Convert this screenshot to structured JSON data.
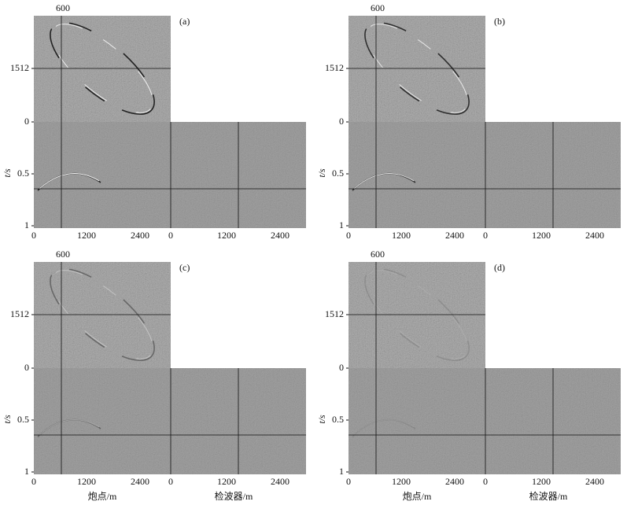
{
  "panels": [
    {
      "label": "(a)",
      "top_tick": "600",
      "left_ticks": [
        "1512",
        "0",
        "0.5",
        "1"
      ],
      "bottom_ticks": [
        "0",
        "1200",
        "2400",
        "0",
        "1200",
        "2400"
      ]
    },
    {
      "label": "(b)",
      "top_tick": "600",
      "left_ticks": [
        "1512",
        "0",
        "0.5",
        "1"
      ],
      "bottom_ticks": [
        "0",
        "1200",
        "2400",
        "0",
        "1200",
        "2400"
      ]
    },
    {
      "label": "(c)",
      "top_tick": "600",
      "left_ticks": [
        "1512",
        "0",
        "0.5",
        "1"
      ],
      "bottom_ticks": [
        "0",
        "1200",
        "2400",
        "0",
        "1200",
        "2400"
      ]
    },
    {
      "label": "(d)",
      "top_tick": "600",
      "left_ticks": [
        "1512",
        "0",
        "0.5",
        "1"
      ],
      "bottom_ticks": [
        "0",
        "1200",
        "2400",
        "0",
        "1200",
        "2400"
      ]
    }
  ],
  "axis_labels": {
    "y": "t/s",
    "x_shot": "炮点/m",
    "x_receiver": "检波器/m"
  }
}
